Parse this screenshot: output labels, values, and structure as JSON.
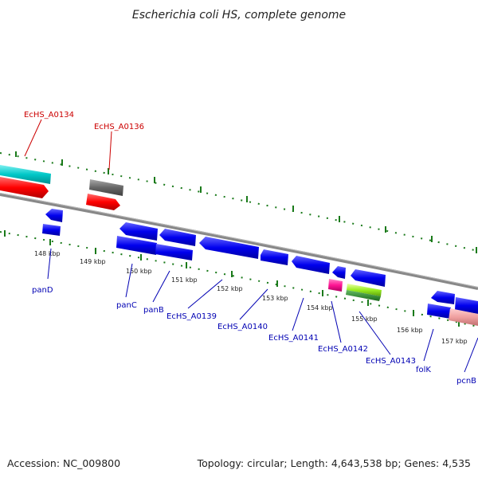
{
  "title": "Escherichia coli HS, complete genome",
  "footer": {
    "accession": "Accession: NC_009800",
    "topology": "Topology: circular; Length: 4,643,538 bp; Genes: 4,535"
  },
  "ruler_labels": [
    "148 kbp",
    "149 kbp",
    "150 kbp",
    "151 kbp",
    "152 kbp",
    "153 kbp",
    "154 kbp",
    "155 kbp",
    "156 kbp",
    "157 kbp"
  ],
  "genes_top": [
    {
      "label": "EcHS_A0134",
      "color": "#cc0000"
    },
    {
      "label": "EcHS_A0136",
      "color": "#cc0000"
    }
  ],
  "genes_bottom": [
    {
      "label": "panD"
    },
    {
      "label": "panC"
    },
    {
      "label": "panB"
    },
    {
      "label": "EcHS_A0139"
    },
    {
      "label": "EcHS_A0140"
    },
    {
      "label": "EcHS_A0141"
    },
    {
      "label": "EcHS_A0142"
    },
    {
      "label": "EcHS_A0143"
    },
    {
      "label": "folK"
    },
    {
      "label": "pcnB"
    }
  ],
  "colors": {
    "cds": "#0000ee",
    "trna": "#ff0000",
    "cyan_feature": "#00c8c8",
    "gray_feature": "#666666",
    "magenta_feature": "#ff1493",
    "green_feature": "#99ee22",
    "pink_feature": "#f0a0a0",
    "ticks": "#1a7a1a",
    "backbone": "#888888"
  }
}
